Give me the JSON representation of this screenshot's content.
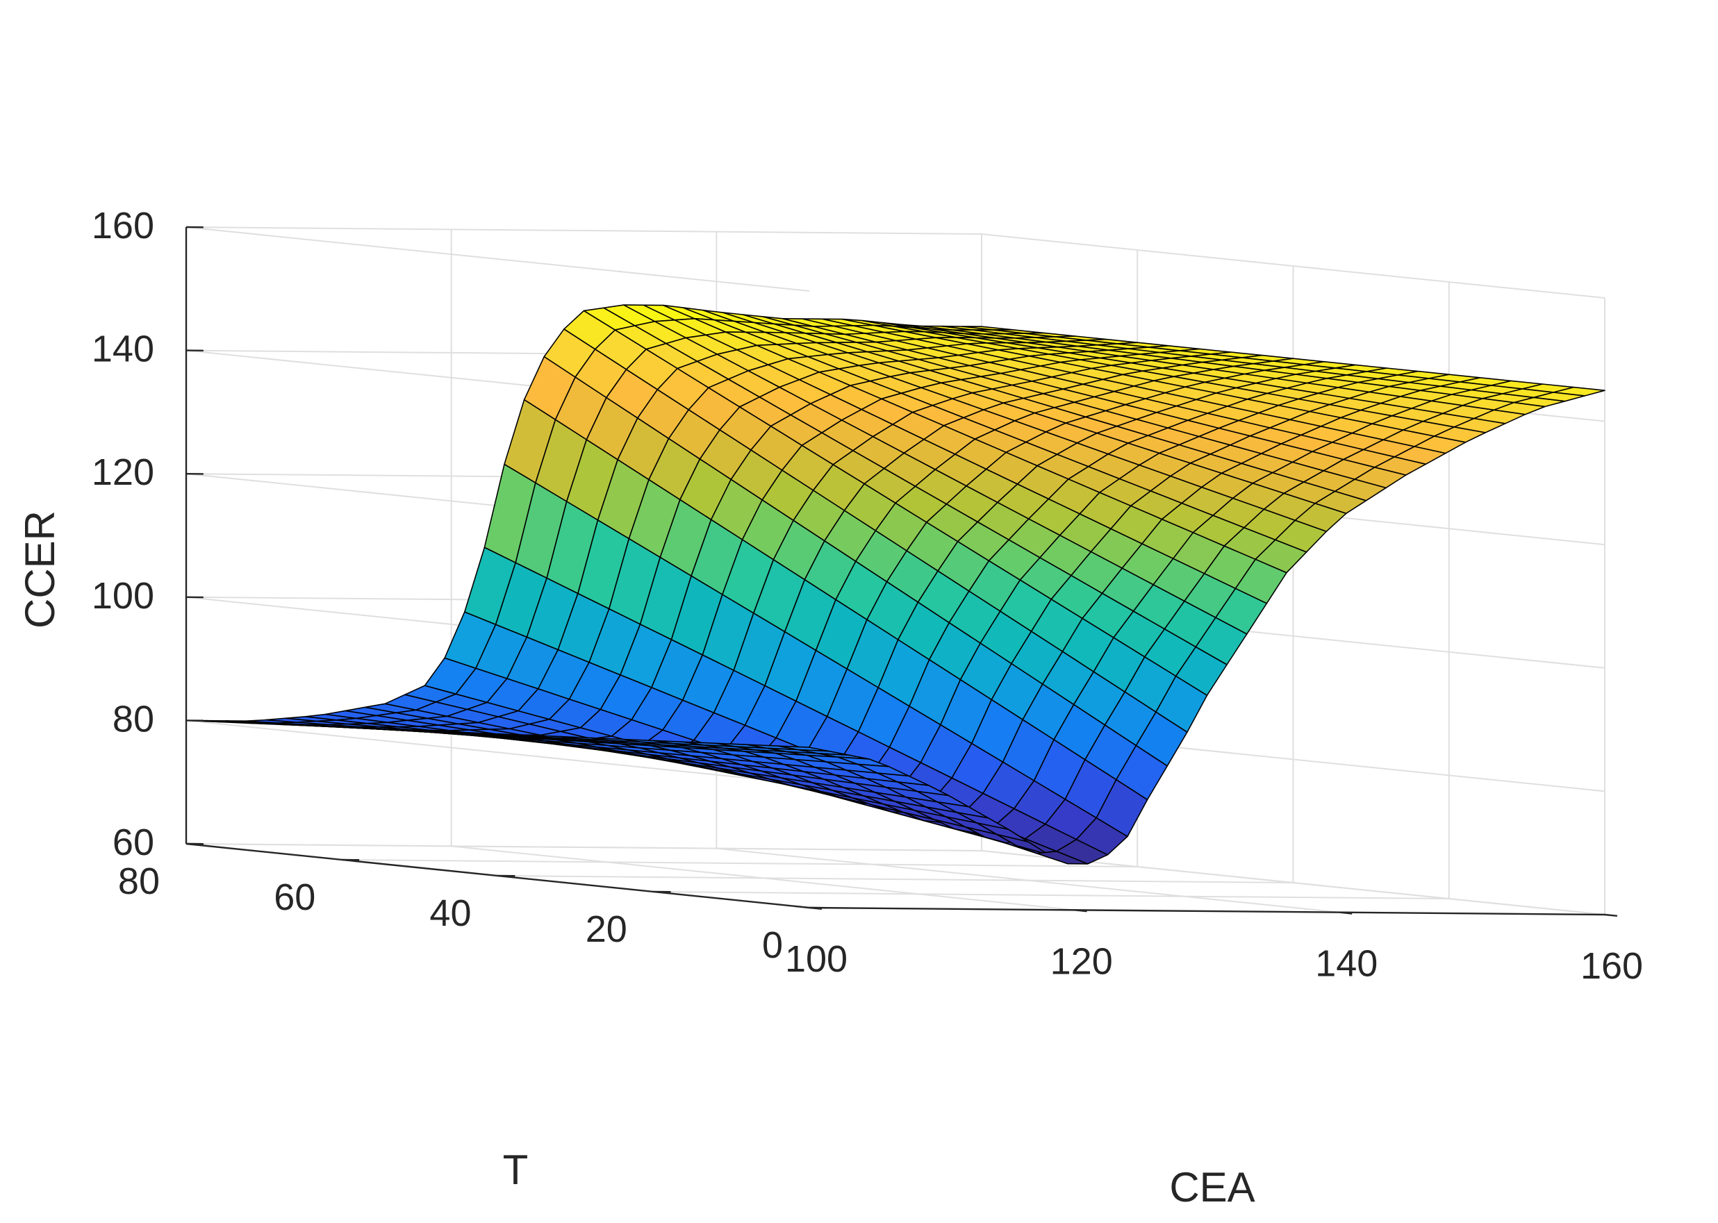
{
  "chart_data": {
    "type": "surface",
    "colormap": "parula",
    "grid": true,
    "colors": {
      "axis": "#262626",
      "grid": "#dfdfdf",
      "mesh_edge": "#000000",
      "background": "#ffffff"
    },
    "xlabel": "CEA",
    "ylabel": "T",
    "zlabel": "CCER",
    "xlim": [
      100,
      160
    ],
    "ylim": [
      0,
      80
    ],
    "zlim": [
      60,
      160
    ],
    "x_ticks": [
      "100",
      "120",
      "140",
      "160"
    ],
    "y_ticks": [
      "0",
      "20",
      "40",
      "60",
      "80"
    ],
    "z_ticks": [
      "60",
      "80",
      "100",
      "120",
      "140",
      "160"
    ],
    "surface": {
      "x_range": [
        100,
        160
      ],
      "y_range": [
        0,
        80
      ],
      "x_count": 41,
      "y_count": 21,
      "z_x_ref": [
        100,
        105,
        110,
        115,
        118,
        120,
        122,
        124,
        126,
        128,
        130,
        133,
        136,
        140,
        145,
        150,
        155,
        160
      ],
      "z_front_T0": [
        86,
        84,
        79,
        73,
        69,
        67,
        68,
        72,
        80,
        87,
        95,
        105,
        115,
        124,
        131,
        137,
        142,
        145
      ],
      "z_back_T80": [
        80,
        80,
        81,
        83,
        86,
        92,
        104,
        122,
        136,
        143,
        147,
        148,
        148,
        147,
        146,
        146,
        145,
        145
      ]
    }
  }
}
